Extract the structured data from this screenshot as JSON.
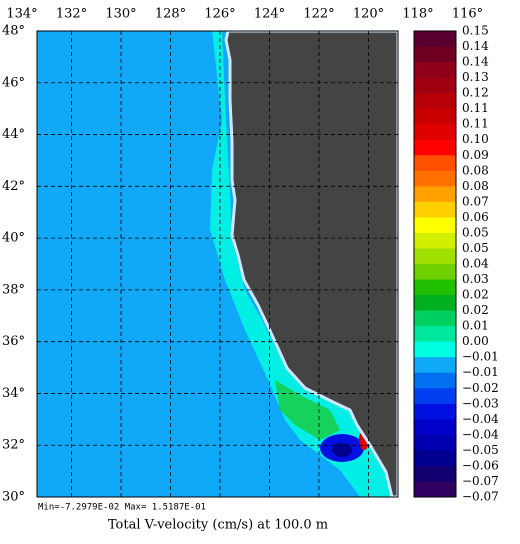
{
  "lon_labels": [
    "134°",
    "132°",
    "130°",
    "128°",
    "126°",
    "124°",
    "122°",
    "120°",
    "118°",
    "116°"
  ],
  "lat_labels": [
    "48°",
    "46°",
    "44°",
    "42°",
    "40°",
    "38°",
    "36°",
    "34°",
    "32°",
    "30°"
  ],
  "colorbar": {
    "labels": [
      "0.15",
      "0.14",
      "0.14",
      "0.13",
      "0.12",
      "0.11",
      "0.11",
      "0.10",
      "0.09",
      "0.08",
      "0.08",
      "0.07",
      "0.06",
      "0.05",
      "0.05",
      "0.04",
      "0.03",
      "0.02",
      "0.02",
      "0.01",
      "0.00",
      "−0.01",
      "−0.01",
      "−0.02",
      "−0.03",
      "−0.04",
      "−0.04",
      "−0.05",
      "−0.06",
      "−0.07",
      "−0.07"
    ],
    "colors": [
      "#5a0030",
      "#700020",
      "#900018",
      "#a00010",
      "#b80008",
      "#c80000",
      "#e00000",
      "#ff0000",
      "#ff5000",
      "#ff7000",
      "#ffa000",
      "#ffd000",
      "#ffff00",
      "#d0f000",
      "#a0e000",
      "#70d000",
      "#20c000",
      "#00b020",
      "#00d060",
      "#00e8a0",
      "#00ffe0",
      "#10a8f8",
      "#0070f0",
      "#0040f0",
      "#0010e0",
      "#0000c8",
      "#0000b0",
      "#000090",
      "#100070",
      "#300060"
    ]
  },
  "stats": "Min=-7.2979E-02   Max= 1.5187E-01",
  "title": "Total V-velocity (cm/s) at 100.0 m"
}
